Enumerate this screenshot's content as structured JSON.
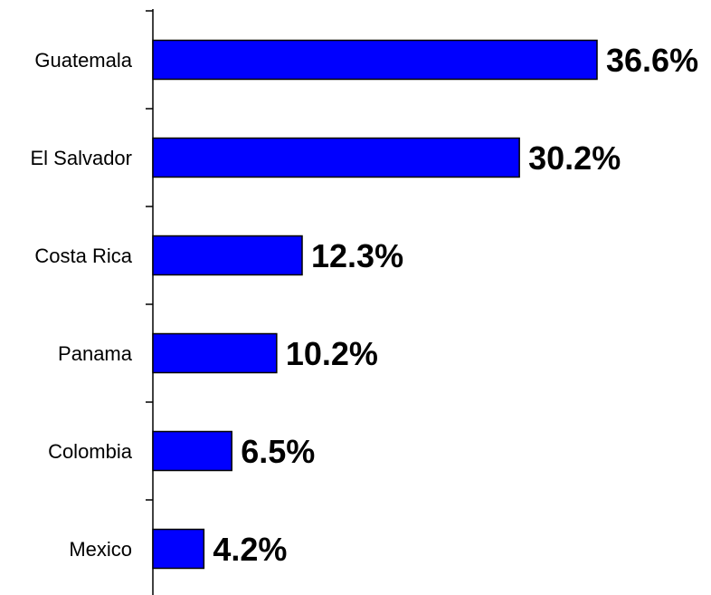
{
  "chart_data": {
    "type": "bar",
    "orientation": "horizontal",
    "categories": [
      "Guatemala",
      "El Salvador",
      "Costa Rica",
      "Panama",
      "Colombia",
      "Mexico"
    ],
    "values": [
      36.6,
      30.2,
      12.3,
      10.2,
      6.5,
      4.2
    ],
    "data_labels": [
      "36.6%",
      "30.2%",
      "12.3%",
      "10.2%",
      "6.5%",
      "4.2%"
    ],
    "xlim": [
      0,
      37
    ],
    "bar_color": "#0000ff",
    "grid": false,
    "legend": "none"
  }
}
